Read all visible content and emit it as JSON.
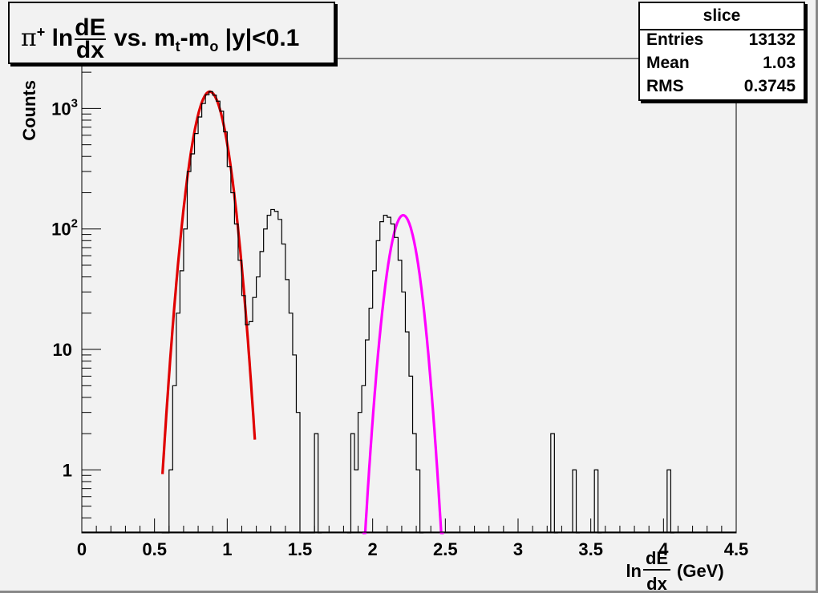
{
  "title": {
    "particle": "π",
    "charge": "+",
    "ln": "ln",
    "frac_num": "dE",
    "frac_den": "dx",
    "vs": "vs. m",
    "sub_t": "t",
    "minus": "-m",
    "sub_o": "o",
    "cut": "|y|<0.1"
  },
  "stats": {
    "header": "slice",
    "rows": [
      {
        "label": "Entries",
        "value": "13132"
      },
      {
        "label": "Mean",
        "value": "1.03"
      },
      {
        "label": "RMS",
        "value": "0.3745"
      }
    ]
  },
  "chart_data": {
    "type": "histogram",
    "ylabel": "Counts",
    "xlabel": {
      "prefix": "ln",
      "frac_num": "dE",
      "frac_den": "dx",
      "suffix": "(GeV)"
    },
    "xlim": [
      0,
      4.5
    ],
    "ylim": [
      0.3,
      2600
    ],
    "yscale": "log",
    "xticks": [
      0,
      0.5,
      1,
      1.5,
      2,
      2.5,
      3,
      3.5,
      4,
      4.5
    ],
    "xtick_labels": [
      "0",
      "0.5",
      "1",
      "1.5",
      "2",
      "2.5",
      "3",
      "3.5",
      "4",
      "4.5"
    ],
    "yticks": [
      1,
      10,
      100,
      1000
    ],
    "ytick_labels": [
      {
        "base": "1",
        "exp": ""
      },
      {
        "base": "10",
        "exp": ""
      },
      {
        "base": "10",
        "exp": "2"
      },
      {
        "base": "10",
        "exp": "3"
      }
    ],
    "histogram": {
      "bin_width": 0.025,
      "color": "#000000",
      "bins": [
        {
          "x": 0.55,
          "y": 0
        },
        {
          "x": 0.575,
          "y": 0.3
        },
        {
          "x": 0.6,
          "y": 1
        },
        {
          "x": 0.625,
          "y": 5
        },
        {
          "x": 0.65,
          "y": 20
        },
        {
          "x": 0.675,
          "y": 45
        },
        {
          "x": 0.7,
          "y": 100
        },
        {
          "x": 0.725,
          "y": 300
        },
        {
          "x": 0.75,
          "y": 420
        },
        {
          "x": 0.775,
          "y": 620
        },
        {
          "x": 0.8,
          "y": 850
        },
        {
          "x": 0.825,
          "y": 1100
        },
        {
          "x": 0.85,
          "y": 1300
        },
        {
          "x": 0.875,
          "y": 1380
        },
        {
          "x": 0.9,
          "y": 1290
        },
        {
          "x": 0.925,
          "y": 1150
        },
        {
          "x": 0.95,
          "y": 950
        },
        {
          "x": 0.975,
          "y": 640
        },
        {
          "x": 1.0,
          "y": 330
        },
        {
          "x": 1.025,
          "y": 200
        },
        {
          "x": 1.05,
          "y": 110
        },
        {
          "x": 1.075,
          "y": 55
        },
        {
          "x": 1.1,
          "y": 28
        },
        {
          "x": 1.125,
          "y": 16
        },
        {
          "x": 1.15,
          "y": 17
        },
        {
          "x": 1.175,
          "y": 27
        },
        {
          "x": 1.2,
          "y": 40
        },
        {
          "x": 1.225,
          "y": 65
        },
        {
          "x": 1.25,
          "y": 100
        },
        {
          "x": 1.275,
          "y": 130
        },
        {
          "x": 1.3,
          "y": 145
        },
        {
          "x": 1.325,
          "y": 140
        },
        {
          "x": 1.35,
          "y": 120
        },
        {
          "x": 1.375,
          "y": 75
        },
        {
          "x": 1.4,
          "y": 38
        },
        {
          "x": 1.425,
          "y": 20
        },
        {
          "x": 1.45,
          "y": 9
        },
        {
          "x": 1.475,
          "y": 3
        },
        {
          "x": 1.5,
          "y": 0
        },
        {
          "x": 1.525,
          "y": 0
        },
        {
          "x": 1.55,
          "y": 0
        },
        {
          "x": 1.575,
          "y": 0
        },
        {
          "x": 1.6,
          "y": 2
        },
        {
          "x": 1.625,
          "y": 0
        },
        {
          "x": 1.825,
          "y": 0
        },
        {
          "x": 1.85,
          "y": 2
        },
        {
          "x": 1.875,
          "y": 1
        },
        {
          "x": 1.9,
          "y": 3
        },
        {
          "x": 1.925,
          "y": 5
        },
        {
          "x": 1.95,
          "y": 12
        },
        {
          "x": 1.975,
          "y": 22
        },
        {
          "x": 2.0,
          "y": 45
        },
        {
          "x": 2.025,
          "y": 80
        },
        {
          "x": 2.05,
          "y": 115
        },
        {
          "x": 2.075,
          "y": 130
        },
        {
          "x": 2.1,
          "y": 125
        },
        {
          "x": 2.125,
          "y": 110
        },
        {
          "x": 2.15,
          "y": 85
        },
        {
          "x": 2.175,
          "y": 55
        },
        {
          "x": 2.2,
          "y": 30
        },
        {
          "x": 2.225,
          "y": 14
        },
        {
          "x": 2.25,
          "y": 6
        },
        {
          "x": 2.275,
          "y": 2
        },
        {
          "x": 2.3,
          "y": 1
        },
        {
          "x": 2.325,
          "y": 0
        },
        {
          "x": 3.225,
          "y": 2
        },
        {
          "x": 3.25,
          "y": 0
        },
        {
          "x": 3.375,
          "y": 1
        },
        {
          "x": 3.4,
          "y": 0
        },
        {
          "x": 3.525,
          "y": 1
        },
        {
          "x": 3.55,
          "y": 0
        },
        {
          "x": 4.025,
          "y": 1
        },
        {
          "x": 4.05,
          "y": 0
        }
      ]
    },
    "fits": [
      {
        "color": "#e00000",
        "amplitude": 1380,
        "mean": 0.88,
        "sigma": 0.085,
        "xrange": [
          0.555,
          1.19
        ]
      },
      {
        "color": "#ff00ff",
        "amplitude": 130,
        "mean": 2.21,
        "sigma": 0.075,
        "xrange": [
          1.93,
          2.49
        ]
      }
    ]
  }
}
